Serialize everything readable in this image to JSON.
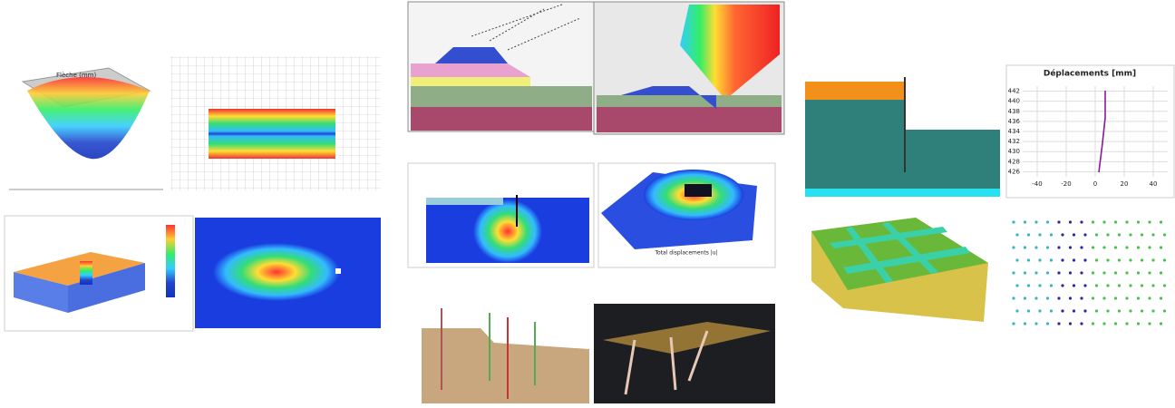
{
  "surface_plot": {
    "title": "Flèche (mm)"
  },
  "plaxis_3d": {
    "caption": "Total displacements |u|"
  },
  "displacement_chart": {
    "title": "Déplacements [mm]",
    "xticks": [
      -40,
      -20,
      0,
      20,
      40
    ],
    "xlim": [
      -50,
      50
    ],
    "yticks": [
      426,
      428,
      430,
      432,
      434,
      436,
      438,
      440,
      442
    ],
    "ylim": [
      425,
      443
    ]
  }
}
